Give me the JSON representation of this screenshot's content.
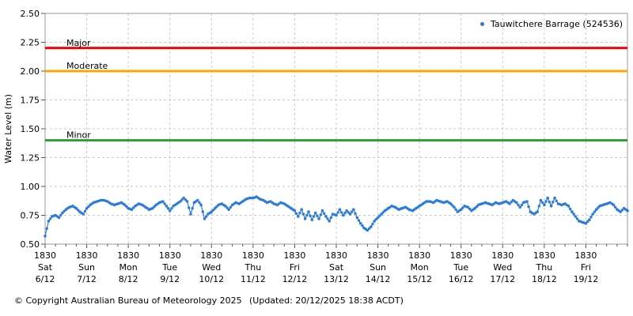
{
  "legend": {
    "label": "Tauwitchere Barrage (524536)",
    "marker": "dot-icon",
    "marker_color": "#2b7bdb"
  },
  "axes": {
    "y": {
      "label": "Water Level (m)",
      "min": 0.5,
      "max": 2.5,
      "tick_step": 0.25,
      "tick_labels": [
        "0.50",
        "0.75",
        "1.00",
        "1.25",
        "1.50",
        "1.75",
        "2.00",
        "2.25",
        "2.50"
      ]
    },
    "x": {
      "days": 14,
      "minor_ticks_per_day": 4,
      "ticks": [
        {
          "time": "1830",
          "day": "Sat",
          "date": "6/12"
        },
        {
          "time": "1830",
          "day": "Sun",
          "date": "7/12"
        },
        {
          "time": "1830",
          "day": "Mon",
          "date": "8/12"
        },
        {
          "time": "1830",
          "day": "Tue",
          "date": "9/12"
        },
        {
          "time": "1830",
          "day": "Wed",
          "date": "10/12"
        },
        {
          "time": "1830",
          "day": "Thu",
          "date": "11/12"
        },
        {
          "time": "1830",
          "day": "Fri",
          "date": "12/12"
        },
        {
          "time": "1830",
          "day": "Sat",
          "date": "13/12"
        },
        {
          "time": "1830",
          "day": "Sun",
          "date": "14/12"
        },
        {
          "time": "1830",
          "day": "Mon",
          "date": "15/12"
        },
        {
          "time": "1830",
          "day": "Tue",
          "date": "16/12"
        },
        {
          "time": "1830",
          "day": "Wed",
          "date": "17/12"
        },
        {
          "time": "1830",
          "day": "Thu",
          "date": "18/12"
        },
        {
          "time": "1830",
          "day": "Fri",
          "date": "19/12"
        }
      ]
    }
  },
  "chart_data": {
    "type": "scatter",
    "title": "",
    "xlabel": "",
    "ylabel": "Water Level (m)",
    "ylim": [
      0.5,
      2.5
    ],
    "grid": true,
    "legend_position": "upper right",
    "x_axis_note": "daily ticks at 1830 from Sat 6/12 to Fri 19/12, plot spans 14 days",
    "thresholds": [
      {
        "name": "Major",
        "value": 2.2,
        "color": "#ee0000"
      },
      {
        "name": "Moderate",
        "value": 2.0,
        "color": "#ffa500"
      },
      {
        "name": "Minor",
        "value": 1.4,
        "color": "#339933"
      }
    ],
    "series": [
      {
        "name": "Tauwitchere Barrage (524536)",
        "color": "#2b7bdb",
        "start_label": "Sat 6/12 1830",
        "interval_hours": 2,
        "x_start_day": 0,
        "x_step_days": 0.0833333,
        "values": [
          0.57,
          0.7,
          0.74,
          0.75,
          0.73,
          0.77,
          0.8,
          0.82,
          0.83,
          0.81,
          0.78,
          0.76,
          0.81,
          0.84,
          0.86,
          0.87,
          0.88,
          0.88,
          0.87,
          0.85,
          0.84,
          0.85,
          0.86,
          0.84,
          0.81,
          0.8,
          0.83,
          0.85,
          0.84,
          0.82,
          0.8,
          0.81,
          0.84,
          0.86,
          0.87,
          0.83,
          0.79,
          0.83,
          0.85,
          0.87,
          0.9,
          0.87,
          0.76,
          0.86,
          0.88,
          0.84,
          0.72,
          0.76,
          0.78,
          0.81,
          0.84,
          0.85,
          0.83,
          0.8,
          0.84,
          0.86,
          0.85,
          0.87,
          0.89,
          0.9,
          0.9,
          0.91,
          0.89,
          0.88,
          0.86,
          0.87,
          0.85,
          0.84,
          0.86,
          0.85,
          0.83,
          0.81,
          0.79,
          0.74,
          0.8,
          0.72,
          0.78,
          0.71,
          0.77,
          0.72,
          0.79,
          0.74,
          0.7,
          0.76,
          0.75,
          0.8,
          0.75,
          0.79,
          0.76,
          0.8,
          0.73,
          0.68,
          0.64,
          0.62,
          0.65,
          0.7,
          0.73,
          0.76,
          0.79,
          0.81,
          0.83,
          0.82,
          0.8,
          0.81,
          0.82,
          0.8,
          0.79,
          0.81,
          0.83,
          0.85,
          0.87,
          0.87,
          0.86,
          0.88,
          0.87,
          0.86,
          0.87,
          0.85,
          0.82,
          0.78,
          0.8,
          0.83,
          0.82,
          0.79,
          0.81,
          0.84,
          0.85,
          0.86,
          0.85,
          0.84,
          0.86,
          0.85,
          0.86,
          0.87,
          0.85,
          0.88,
          0.86,
          0.82,
          0.86,
          0.87,
          0.78,
          0.76,
          0.78,
          0.88,
          0.84,
          0.9,
          0.83,
          0.9,
          0.85,
          0.84,
          0.85,
          0.83,
          0.78,
          0.74,
          0.7,
          0.69,
          0.68,
          0.71,
          0.76,
          0.8,
          0.83,
          0.84,
          0.85,
          0.86,
          0.84,
          0.8,
          0.78,
          0.81,
          0.79
        ]
      }
    ]
  },
  "style": {
    "grid_color": "#c9c9c9",
    "border_color": "#999999",
    "tick_color": "#555555",
    "text_color": "#000000",
    "background": "#ffffff"
  },
  "footer": {
    "copyright": "© Copyright Australian Bureau of Meteorology 2025",
    "updated": "(Updated: 20/12/2025 18:38 ACDT)"
  }
}
